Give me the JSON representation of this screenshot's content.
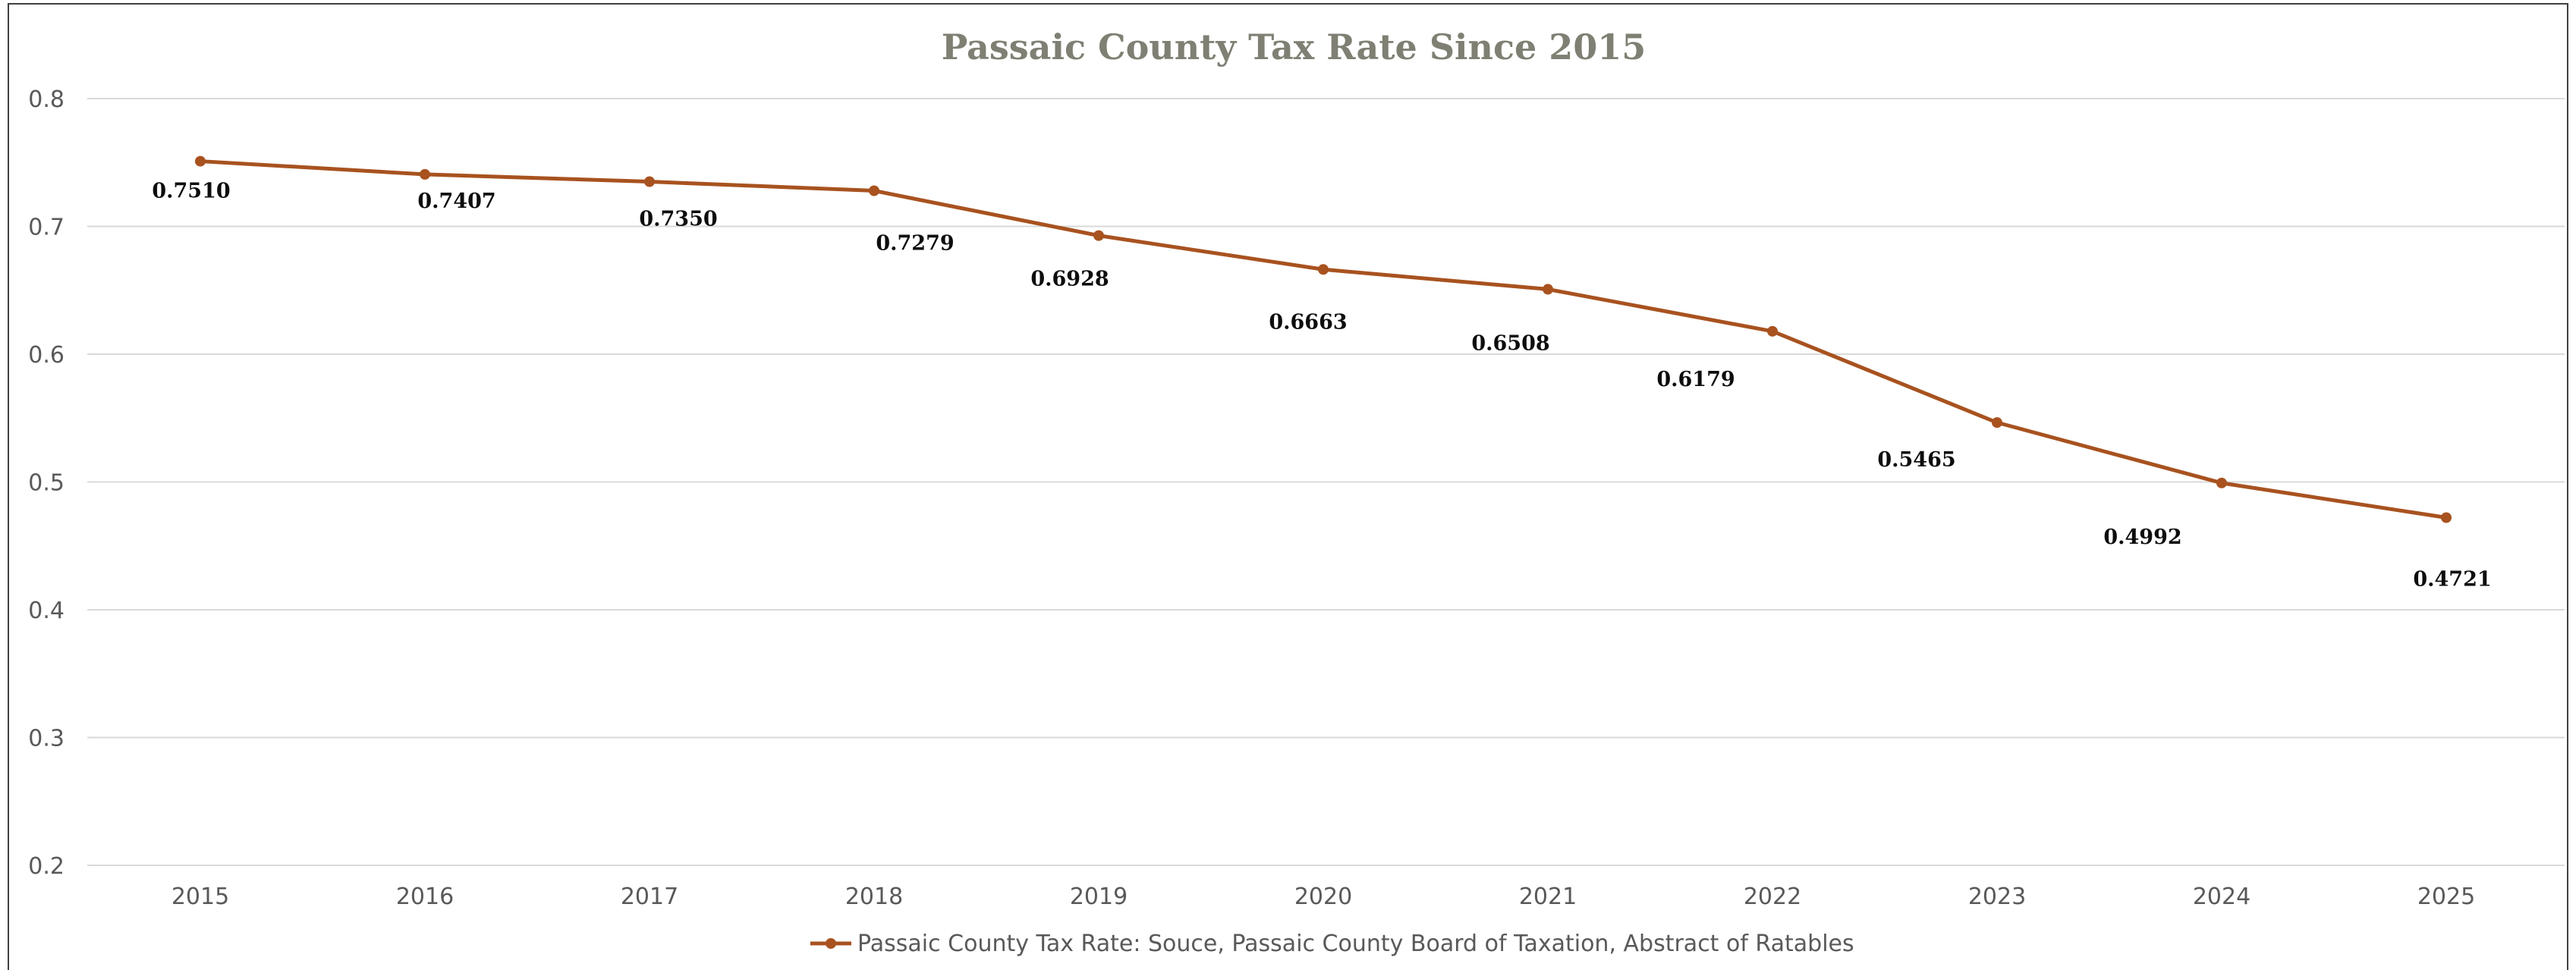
{
  "chart_data": {
    "type": "line",
    "title": "Passaic County Tax Rate Since 2015",
    "xlabel": "",
    "ylabel": "",
    "categories": [
      "2015",
      "2016",
      "2017",
      "2018",
      "2019",
      "2020",
      "2021",
      "2022",
      "2023",
      "2024",
      "2025"
    ],
    "series": [
      {
        "name": "Passaic County Tax Rate: Souce, Passaic County Board of Taxation, Abstract of Ratables",
        "values": [
          0.751,
          0.7407,
          0.735,
          0.7279,
          0.6928,
          0.6663,
          0.6508,
          0.6179,
          0.5465,
          0.4992,
          0.4721
        ],
        "data_labels": [
          "0.7510",
          "0.7407",
          "0.7350",
          "0.7279",
          "0.6928",
          "0.6663",
          "0.6508",
          "0.6179",
          "0.5465",
          "0.4992",
          "0.4721"
        ],
        "color": "#a8521f"
      }
    ],
    "ylim": [
      0.2,
      0.8
    ],
    "yticks": [
      "0.2",
      "0.3",
      "0.4",
      "0.5",
      "0.6",
      "0.7",
      "0.8"
    ],
    "grid": true,
    "legend_position": "bottom"
  }
}
